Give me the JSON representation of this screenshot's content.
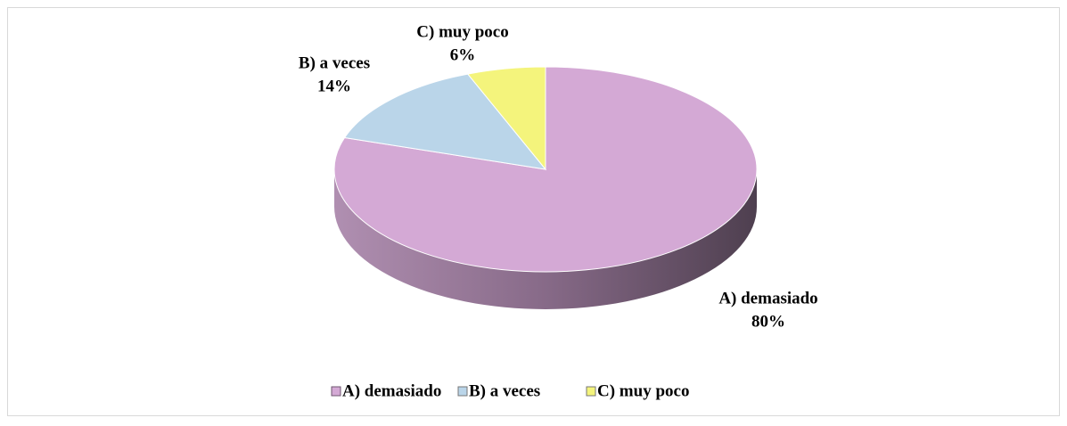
{
  "chart_data": {
    "type": "pie",
    "categories": [
      "A) demasiado",
      "B) a veces",
      "C) muy poco"
    ],
    "values": [
      80,
      14,
      6
    ],
    "value_labels": [
      "80%",
      "14%",
      "6%"
    ],
    "colors": [
      "#d4a9d5",
      "#bad5e9",
      "#f4f47c"
    ],
    "legend": "bottom"
  }
}
